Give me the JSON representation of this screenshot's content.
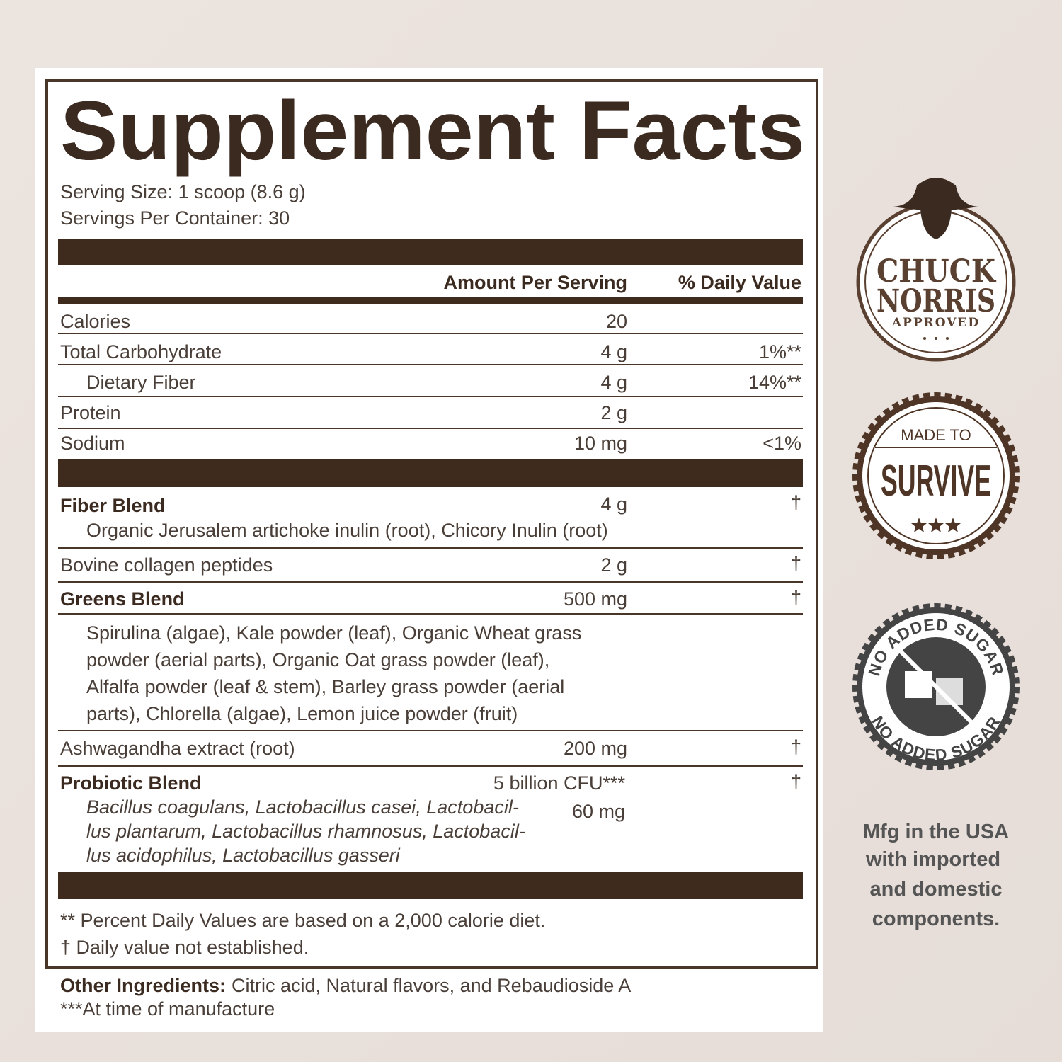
{
  "label": {
    "title": "Supplement Facts",
    "serving_size": "Serving Size: 1 scoop (8.6 g)",
    "servings_per_container": "Servings Per Container: 30",
    "column_headers": {
      "amount": "Amount Per Serving",
      "daily_value": "% Daily Value"
    },
    "nutrients": [
      {
        "name": "Calories",
        "amount": "20"
      },
      {
        "name": "Total Carbohydrate",
        "amount": "4 g",
        "daily_value": "1%**"
      },
      {
        "name": "Dietary Fiber",
        "amount": "4 g",
        "daily_value": "14%**"
      },
      {
        "name": "Protein",
        "amount": "2 g"
      },
      {
        "name": "Sodium",
        "amount": "10 mg",
        "daily_value": "<1%"
      }
    ],
    "ingredients": [
      {
        "name": "Fiber Blend",
        "amount": "4 g",
        "daily_value": "†",
        "details": [
          "Organic Jerusalem artichoke inulin (root), Chicory Inulin (root)"
        ]
      },
      {
        "name": "Bovine collagen peptides",
        "amount": "2 g",
        "daily_value": "†"
      },
      {
        "name": "Greens Blend",
        "amount": "500 mg",
        "daily_value": "†",
        "details": [
          "Spirulina (algae), Kale powder (leaf), Organic Wheat grass",
          "powder (aerial parts), Organic Oat grass powder (leaf),",
          "Alfalfa powder (leaf & stem), Barley grass powder (aerial",
          "parts), Chlorella (algae), Lemon juice powder (fruit)"
        ]
      },
      {
        "name": "Ashwagandha extract (root)",
        "amount": "200 mg",
        "daily_value": "†"
      },
      {
        "name": "Probiotic Blend",
        "amount": "5 billion CFU***",
        "daily_value": "†",
        "details": [
          "Bacillus coagulans, Lactobacillus casei, Lactobacil-",
          "lus plantarum, Lactobacillus rhamnosus, Lactobacil-",
          "lus acidophilus, Lactobacillus gasseri"
        ],
        "detail_amount": "60 mg"
      }
    ],
    "footnotes": [
      "** Percent Daily Values are based on a 2,000 calorie diet.",
      "† Daily value not established."
    ],
    "other_ingredients": {
      "label": "Other Ingredients:",
      "text": "Citric acid, Natural flavors, and Rebaudioside A"
    },
    "manufacture_note": "***At time of manufacture"
  },
  "badges": [
    {
      "lines": [
        "CHUCK",
        "NORRIS"
      ],
      "subtitle": "APPROVED"
    },
    {
      "top": "MADE TO",
      "main": "SURVIVE"
    },
    {
      "top": "NO ADDED SUGAR",
      "bottom": "NO ADDED SUGAR"
    }
  ],
  "origin": [
    "Mfg in the USA",
    "with imported",
    "and domestic",
    "components."
  ]
}
